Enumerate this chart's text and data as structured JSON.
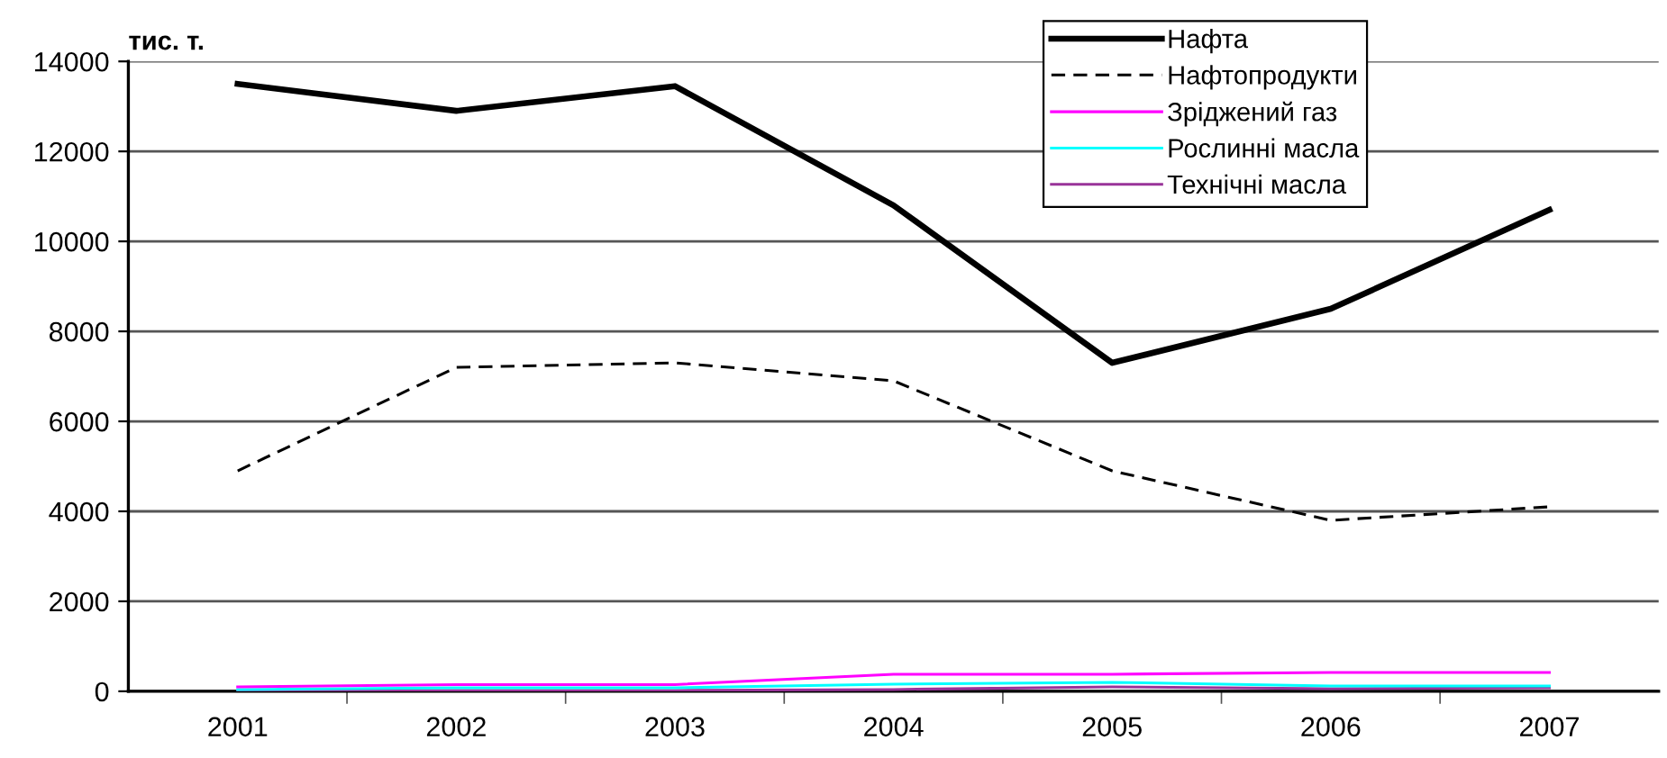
{
  "chart_data": {
    "type": "line",
    "ylabel": "тис. т.",
    "categories": [
      "2001",
      "2002",
      "2003",
      "2004",
      "2005",
      "2006",
      "2007"
    ],
    "series": [
      {
        "name": "Нафта",
        "color": "#000000",
        "values": [
          13500,
          12900,
          13450,
          10800,
          7300,
          8500,
          10700
        ]
      },
      {
        "name": "Нафтопродукти",
        "color": "#000000",
        "line_style": "dashed",
        "values": [
          4900,
          7200,
          7300,
          6900,
          4900,
          3800,
          4100
        ]
      },
      {
        "name": "Зріджений газ",
        "color": "#ff00ff",
        "values": [
          100,
          150,
          150,
          380,
          380,
          420,
          420
        ]
      },
      {
        "name": "Рослинні масла",
        "color": "#00ffff",
        "values": [
          40,
          80,
          80,
          160,
          200,
          120,
          120
        ]
      },
      {
        "name": "Технічні масла",
        "color": "#993399",
        "values": [
          10,
          20,
          20,
          40,
          100,
          60,
          80
        ]
      }
    ],
    "ylim": [
      0,
      14000
    ],
    "yticks": [
      0,
      2000,
      4000,
      6000,
      8000,
      10000,
      12000,
      14000
    ],
    "grid": "y",
    "legend": "top right",
    "marker": "none",
    "line_style": "solid"
  }
}
